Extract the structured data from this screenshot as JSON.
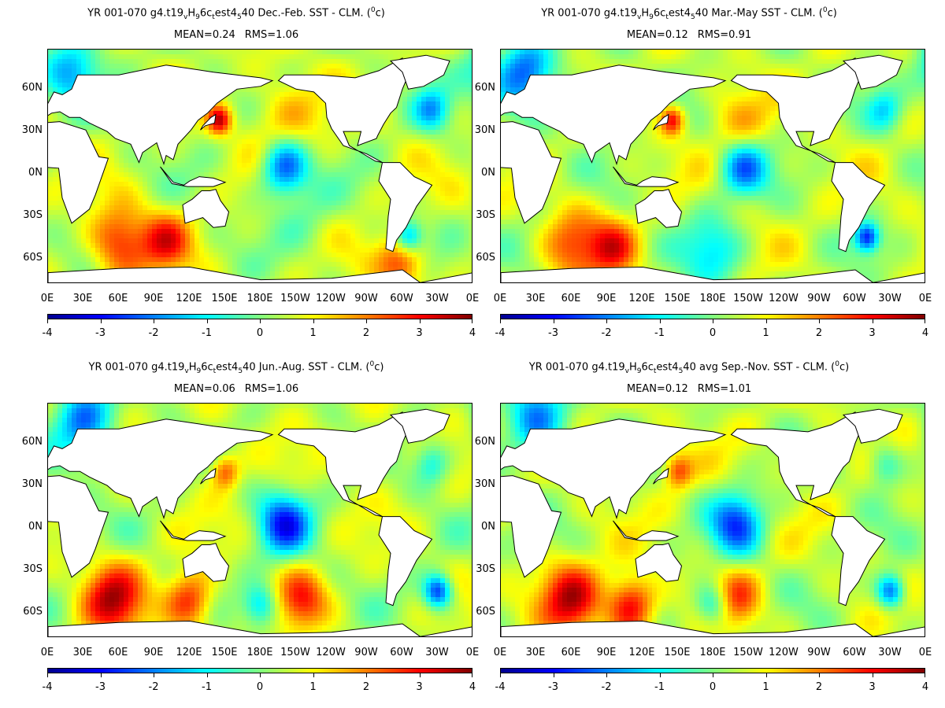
{
  "panels": [
    {
      "title_prefix": "YR 001-070 g4.t19",
      "title_s1": "v",
      "title_m1": "H",
      "title_s2": "9",
      "title_m2": "6c",
      "title_s3": "t",
      "title_m3": "est4",
      "title_s4": "5",
      "title_suffix": "40  Dec.-Feb. SST - CLM. (",
      "title_sup": "0",
      "title_end": "c)",
      "mean": "MEAN=0.24",
      "rms": "RMS=1.06"
    },
    {
      "title_prefix": "YR 001-070 g4.t19",
      "title_s1": "v",
      "title_m1": "H",
      "title_s2": "9",
      "title_m2": "6c",
      "title_s3": "t",
      "title_m3": "est4",
      "title_s4": "5",
      "title_suffix": "40 Mar.-May SST - CLM. (",
      "title_sup": "0",
      "title_end": "c)",
      "mean": "MEAN=0.12",
      "rms": "RMS=0.91"
    },
    {
      "title_prefix": "YR 001-070 g4.t19",
      "title_s1": "v",
      "title_m1": "H",
      "title_s2": "9",
      "title_m2": "6c",
      "title_s3": "t",
      "title_m3": "est4",
      "title_s4": "5",
      "title_suffix": "40 Jun.-Aug. SST - CLM. (",
      "title_sup": "0",
      "title_end": "c)",
      "mean": "MEAN=0.06",
      "rms": "RMS=1.06"
    },
    {
      "title_prefix": "YR 001-070 g4.t19",
      "title_s1": "v",
      "title_m1": "H",
      "title_s2": "9",
      "title_m2": "6c",
      "title_s3": "t",
      "title_m3": "est4",
      "title_s4": "5",
      "title_suffix": "40 avg Sep.-Nov. SST - CLM. (",
      "title_sup": "0",
      "title_end": "c)",
      "mean": "MEAN=0.12",
      "rms": "RMS=1.01"
    }
  ],
  "lat_labels": [
    "60N",
    "30N",
    "0N",
    "30S",
    "60S"
  ],
  "lon_labels": [
    "0E",
    "30E",
    "60E",
    "90E",
    "120E",
    "150E",
    "180E",
    "150W",
    "120W",
    "90W",
    "60W",
    "30W",
    "0E"
  ],
  "colorbar_labels": [
    "-4",
    "-3",
    "-2",
    "-1",
    "0",
    "1",
    "2",
    "3",
    "4"
  ],
  "colorbar_range": [
    -4,
    4
  ],
  "colors": {
    "land": "#ffffff",
    "background_anomaly": "#f2e84a",
    "scale": [
      "#00008f",
      "#0000ff",
      "#0080ff",
      "#00ffff",
      "#80ff80",
      "#ffff00",
      "#ff8000",
      "#ff0000",
      "#800000"
    ]
  }
}
